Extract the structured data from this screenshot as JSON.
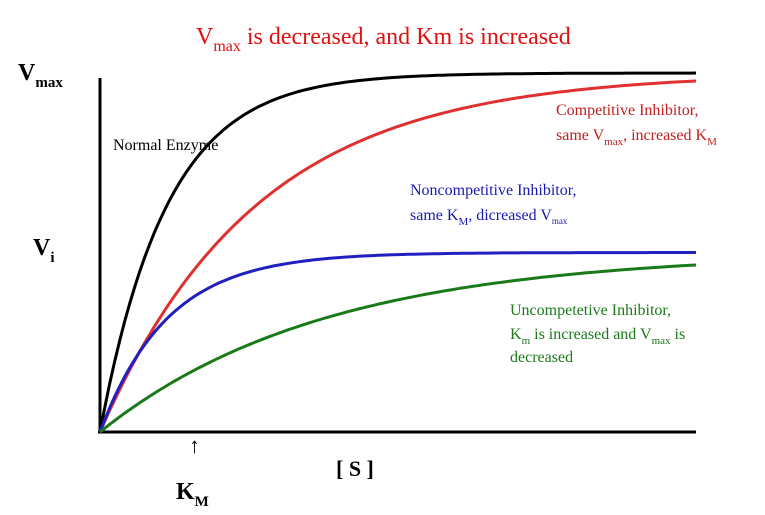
{
  "title": {
    "main": "V",
    "sub": "max",
    "rest": " is decreased, and Km is increased"
  },
  "y_axis": {
    "vmax_main": "V",
    "vmax_sub": "max",
    "vi_main": "V",
    "vi_sub": "i"
  },
  "x_axis": {
    "label": "[ S ]",
    "km_main": "K",
    "km_sub": "M",
    "arrow": "↑"
  },
  "annotations": {
    "normal": "Normal Enzyme",
    "competitive": {
      "l1": "Competitive Inhibitor,",
      "l2a": "same V",
      "l2b": "max",
      "l2c": ", increased K",
      "l2d": "M"
    },
    "noncompetitive": {
      "l1": "Noncompetitive Inhibitor,",
      "l2a": "same K",
      "l2b": "M",
      "l2c": ", dicreased V",
      "l2d": "max"
    },
    "uncompetitive": {
      "l1": "Uncompetetive Inhibitor,",
      "l2a": "K",
      "l2b": "m",
      "l2c": " is increased and V",
      "l2d": "max",
      "l2e": " is",
      "l3": "decreased"
    }
  },
  "colors": {
    "normal": "#000000",
    "competitive": "#e03030",
    "noncompetitive": "#2020c0",
    "uncompetitive": "#1a7a1a",
    "title": "#e01010"
  },
  "chart_data": {
    "type": "line",
    "xlim": [
      0,
      10
    ],
    "ylim": [
      0,
      1.0
    ],
    "series": [
      {
        "key": "normal",
        "vmax": 1.0,
        "km": 1.5
      },
      {
        "key": "competitive",
        "vmax": 1.0,
        "km": 3.5
      },
      {
        "key": "noncompetitive",
        "vmax": 0.5,
        "km": 1.5
      },
      {
        "key": "uncompetitive",
        "vmax": 0.5,
        "km": 5.0
      }
    ]
  }
}
